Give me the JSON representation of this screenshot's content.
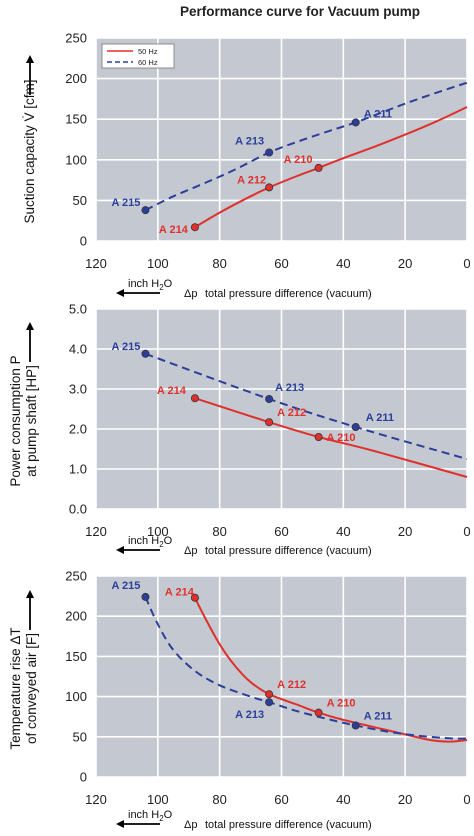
{
  "title": "Performance curve for Vacuum pump",
  "legend": [
    "50 Hz",
    "60 Hz"
  ],
  "colors": {
    "hz50": "#e0302c",
    "hz60": "#2b3f9a",
    "grid_bg": "#c4c8d1",
    "grid_line": "#ffffff"
  },
  "x_axis": {
    "unit_label": "inch H",
    "unit_sub": "2",
    "unit_end": "O",
    "delta": "Δp",
    "label": "total pressure difference (vacuum)",
    "ticks": [
      "120",
      "100",
      "80",
      "60",
      "40",
      "20",
      "0"
    ]
  },
  "chart_data": [
    {
      "type": "line",
      "ylabel": "Suction capacity V̇ [cfm]",
      "ylabel_lines": [
        "Suction capacity V̇ [cfm]"
      ],
      "xlim": [
        120,
        0
      ],
      "ylim": [
        0,
        250
      ],
      "yticks": [
        "0",
        "50",
        "100",
        "150",
        "200",
        "250"
      ],
      "grid": true,
      "legend": "top-left",
      "series": [
        {
          "name": "50 Hz",
          "x": [
            88,
            80,
            70,
            64,
            55,
            48,
            40,
            30,
            20,
            10,
            0
          ],
          "y": [
            17,
            35,
            55,
            66,
            80,
            90,
            102,
            116,
            131,
            147,
            165
          ]
        },
        {
          "name": "60 Hz",
          "x": [
            104,
            95,
            85,
            75,
            64,
            55,
            45,
            36,
            25,
            15,
            0
          ],
          "y": [
            38,
            55,
            71,
            88,
            109,
            122,
            135,
            146,
            162,
            176,
            195
          ]
        }
      ],
      "points": [
        {
          "label": "A 214",
          "series": "50 Hz",
          "x": 88,
          "y": 17
        },
        {
          "label": "A 212",
          "series": "50 Hz",
          "x": 64,
          "y": 66
        },
        {
          "label": "A 210",
          "series": "50 Hz",
          "x": 48,
          "y": 90
        },
        {
          "label": "A 215",
          "series": "60 Hz",
          "x": 104,
          "y": 38
        },
        {
          "label": "A 213",
          "series": "60 Hz",
          "x": 64,
          "y": 109
        },
        {
          "label": "A 211",
          "series": "60 Hz",
          "x": 36,
          "y": 146
        }
      ]
    },
    {
      "type": "line",
      "ylabel": "Power consumption P at pump shaft [HP]",
      "ylabel_lines": [
        "Power consumption P",
        "at pump shaft [HP]"
      ],
      "xlim": [
        120,
        0
      ],
      "ylim": [
        0,
        5
      ],
      "yticks": [
        "0.0",
        "1.0",
        "2.0",
        "3.0",
        "4.0",
        "5.0"
      ],
      "grid": true,
      "series": [
        {
          "name": "50 Hz",
          "x": [
            88,
            64,
            48,
            30,
            0
          ],
          "y": [
            2.77,
            2.17,
            1.8,
            1.45,
            0.8
          ]
        },
        {
          "name": "60 Hz",
          "x": [
            104,
            64,
            36,
            0
          ],
          "y": [
            3.88,
            2.75,
            2.05,
            1.25
          ]
        }
      ],
      "points": [
        {
          "label": "A 214",
          "series": "50 Hz",
          "x": 88,
          "y": 2.77
        },
        {
          "label": "A 212",
          "series": "50 Hz",
          "x": 64,
          "y": 2.17
        },
        {
          "label": "A 210",
          "series": "50 Hz",
          "x": 48,
          "y": 1.8
        },
        {
          "label": "A 215",
          "series": "60 Hz",
          "x": 104,
          "y": 3.88
        },
        {
          "label": "A 213",
          "series": "60 Hz",
          "x": 64,
          "y": 2.75
        },
        {
          "label": "A 211",
          "series": "60 Hz",
          "x": 36,
          "y": 2.05
        }
      ]
    },
    {
      "type": "line",
      "ylabel": "Temperature rise ΔT of conveyed air [F]",
      "ylabel_lines": [
        "Temperature rise ΔT",
        "of conveyed air [F]"
      ],
      "xlim": [
        120,
        0
      ],
      "ylim": [
        0,
        250
      ],
      "yticks": [
        "0",
        "50",
        "100",
        "150",
        "200",
        "250"
      ],
      "grid": true,
      "series": [
        {
          "name": "50 Hz",
          "x": [
            88,
            85,
            80,
            75,
            70,
            64,
            55,
            48,
            40,
            30,
            20,
            12,
            6,
            2,
            0
          ],
          "y": [
            223,
            200,
            165,
            138,
            118,
            103,
            90,
            80,
            71,
            62,
            53,
            46,
            44,
            45,
            46
          ]
        },
        {
          "name": "60 Hz",
          "x": [
            104,
            100,
            95,
            88,
            80,
            70,
            64,
            55,
            45,
            36,
            25,
            15,
            5,
            0
          ],
          "y": [
            224,
            190,
            158,
            132,
            114,
            100,
            93,
            82,
            72,
            64,
            56,
            51,
            48,
            48
          ]
        }
      ],
      "points": [
        {
          "label": "A 214",
          "series": "50 Hz",
          "x": 88,
          "y": 223
        },
        {
          "label": "A 212",
          "series": "50 Hz",
          "x": 64,
          "y": 103
        },
        {
          "label": "A 210",
          "series": "50 Hz",
          "x": 48,
          "y": 80
        },
        {
          "label": "A 215",
          "series": "60 Hz",
          "x": 104,
          "y": 224
        },
        {
          "label": "A 213",
          "series": "60 Hz",
          "x": 64,
          "y": 93
        },
        {
          "label": "A 211",
          "series": "60 Hz",
          "x": 36,
          "y": 64
        }
      ]
    }
  ]
}
